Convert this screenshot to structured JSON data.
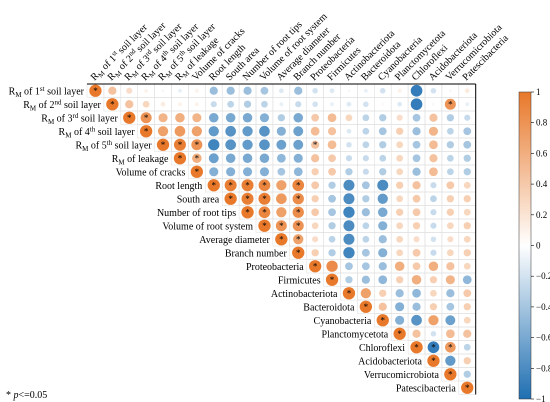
{
  "chart_data": {
    "type": "heatmap",
    "title": "",
    "note": "* p<=0.05",
    "variables": [
      "RM of 1st soil layer",
      "RM of 2nd soil layer",
      "RM of 3rd soil layer",
      "RM of 4th soil layer",
      "RM of 5th soil layer",
      "RM of leakage",
      "Volume of cracks",
      "Root length",
      "South area",
      "Number of root tips",
      "Volume of root system",
      "Average diameter",
      "Branch number",
      "Proteobacteria",
      "Firmicutes",
      "Actinobacteriota",
      "Bacteroidota",
      "Cyanobacteria",
      "Planctomycetota",
      "Chloroflexi",
      "Acidobacteriota",
      "Verrucomicrobiota",
      "Patescibacteria"
    ],
    "row_labels": [
      {
        "base": "R",
        "sub": "M",
        "pre": " of 1",
        "sup": "st",
        "post": " soil layer"
      },
      {
        "base": "R",
        "sub": "M",
        "pre": " of 2",
        "sup": "nd",
        "post": " soil layer"
      },
      {
        "base": "R",
        "sub": "M",
        "pre": " of 3",
        "sup": "rd",
        "post": " soil layer"
      },
      {
        "base": "R",
        "sub": "M",
        "pre": " of 4",
        "sup": "th",
        "post": " soil layer"
      },
      {
        "base": "R",
        "sub": "M",
        "pre": " of 5",
        "sup": "th",
        "post": " soil layer"
      },
      {
        "base": "R",
        "sub": "M",
        "pre": " of leakage",
        "sup": "",
        "post": ""
      },
      {
        "base": "Volume of cracks",
        "sub": "",
        "pre": "",
        "sup": "",
        "post": ""
      },
      {
        "base": "Root length",
        "sub": "",
        "pre": "",
        "sup": "",
        "post": ""
      },
      {
        "base": "South area",
        "sub": "",
        "pre": "",
        "sup": "",
        "post": ""
      },
      {
        "base": "Number of root tips",
        "sub": "",
        "pre": "",
        "sup": "",
        "post": ""
      },
      {
        "base": "Volume of root system",
        "sub": "",
        "pre": "",
        "sup": "",
        "post": ""
      },
      {
        "base": "Average diameter",
        "sub": "",
        "pre": "",
        "sup": "",
        "post": ""
      },
      {
        "base": "Branch number",
        "sub": "",
        "pre": "",
        "sup": "",
        "post": ""
      },
      {
        "base": "Proteobacteria",
        "sub": "",
        "pre": "",
        "sup": "",
        "post": ""
      },
      {
        "base": "Firmicutes",
        "sub": "",
        "pre": "",
        "sup": "",
        "post": ""
      },
      {
        "base": "Actinobacteriota",
        "sub": "",
        "pre": "",
        "sup": "",
        "post": ""
      },
      {
        "base": "Bacteroidota",
        "sub": "",
        "pre": "",
        "sup": "",
        "post": ""
      },
      {
        "base": "Cyanobacteria",
        "sub": "",
        "pre": "",
        "sup": "",
        "post": ""
      },
      {
        "base": "Planctomycetota",
        "sub": "",
        "pre": "",
        "sup": "",
        "post": ""
      },
      {
        "base": "Chloroflexi",
        "sub": "",
        "pre": "",
        "sup": "",
        "post": ""
      },
      {
        "base": "Acidobacteriota",
        "sub": "",
        "pre": "",
        "sup": "",
        "post": ""
      },
      {
        "base": "Verrucomicrobiota",
        "sub": "",
        "pre": "",
        "sup": "",
        "post": ""
      },
      {
        "base": "Patescibacteria",
        "sub": "",
        "pre": "",
        "sup": "",
        "post": ""
      }
    ],
    "colorbar": {
      "ticks": [
        1,
        0.8,
        0.6,
        0.4,
        0.2,
        0,
        -0.2,
        -0.4,
        -0.6,
        -0.8,
        -1
      ],
      "tick_labels": [
        "1",
        "0.8",
        "0.6",
        "0.4",
        "0.2",
        "0",
        "−0.2",
        "−0.4",
        "−0.6",
        "−0.8",
        "−1"
      ],
      "range": [
        -1,
        1
      ],
      "positive_color": "#e8782a",
      "negative_color": "#1f6fb2",
      "neutral_color": "#ffffff"
    },
    "matrix_upper_triangle": [
      [
        1.0,
        0.45,
        0.25,
        0.1,
        -0.05,
        -0.1,
        0.1,
        -0.45,
        -0.45,
        -0.45,
        -0.4,
        -0.15,
        -0.45,
        -0.2,
        -0.15,
        -0.05,
        -0.1,
        -0.2,
        0.1,
        -0.9,
        -0.2,
        -0.05,
        0.15
      ],
      [
        1.0,
        0.45,
        0.3,
        0.15,
        0.1,
        0.1,
        -0.25,
        -0.3,
        -0.35,
        -0.3,
        -0.1,
        -0.25,
        -0.2,
        -0.1,
        -0.15,
        -0.2,
        0.05,
        -0.15,
        -0.9,
        -0.05,
        0.8,
        -0.1
      ],
      [
        1.0,
        0.8,
        0.55,
        0.6,
        0.55,
        -0.6,
        -0.6,
        -0.6,
        -0.55,
        -0.35,
        -0.6,
        0.4,
        0.5,
        0.3,
        -0.3,
        -0.35,
        0.25,
        -0.4,
        0.45,
        -0.35,
        -0.25
      ],
      [
        1.0,
        0.7,
        0.75,
        0.7,
        -0.7,
        -0.75,
        -0.7,
        -0.75,
        -0.55,
        -0.65,
        0.5,
        0.45,
        -0.15,
        -0.3,
        -0.4,
        0.35,
        -0.45,
        0.55,
        -0.3,
        -0.4
      ],
      [
        1.0,
        0.95,
        0.8,
        -0.85,
        -0.75,
        -0.7,
        -0.75,
        -0.65,
        -0.65,
        0.45,
        0.5,
        -0.2,
        -0.3,
        -0.35,
        0.3,
        -0.4,
        0.5,
        -0.35,
        -0.4
      ],
      [
        1.0,
        0.6,
        -0.65,
        -0.6,
        -0.6,
        -0.6,
        -0.5,
        -0.55,
        0.45,
        0.4,
        -0.25,
        -0.25,
        -0.3,
        0.3,
        -0.4,
        0.45,
        -0.3,
        -0.35
      ],
      [
        1.0,
        -0.55,
        -0.55,
        -0.55,
        -0.55,
        -0.4,
        -0.5,
        0.35,
        0.4,
        -0.35,
        -0.25,
        -0.35,
        0.3,
        -0.45,
        0.5,
        -0.3,
        -0.35
      ],
      [
        1.0,
        0.95,
        0.95,
        0.9,
        0.7,
        0.9,
        0.4,
        -0.35,
        -0.8,
        -0.4,
        -0.8,
        0.35,
        0.45,
        -0.25,
        0.4,
        0.3
      ],
      [
        1.0,
        0.95,
        0.95,
        0.75,
        0.85,
        0.35,
        -0.4,
        -0.8,
        -0.35,
        -0.7,
        0.3,
        0.4,
        -0.3,
        0.35,
        0.35
      ],
      [
        1.0,
        0.9,
        0.7,
        0.85,
        0.4,
        -0.4,
        -0.85,
        -0.45,
        -0.6,
        0.35,
        0.4,
        -0.25,
        0.35,
        0.3
      ],
      [
        1.0,
        0.8,
        0.8,
        0.3,
        -0.35,
        -0.8,
        -0.3,
        -0.55,
        0.3,
        0.35,
        -0.25,
        0.3,
        0.35
      ],
      [
        1.0,
        0.7,
        0.25,
        -0.3,
        -0.8,
        -0.3,
        -0.45,
        0.3,
        0.25,
        -0.2,
        0.25,
        0.3
      ],
      [
        1.0,
        0.35,
        -0.35,
        -0.85,
        -0.4,
        -0.55,
        0.3,
        0.4,
        -0.25,
        0.3,
        0.35
      ],
      [
        1.0,
        0.85,
        -0.4,
        -0.4,
        -0.45,
        0.6,
        0.4,
        0.6,
        0.45,
        0.3
      ],
      [
        1.0,
        -0.35,
        -0.45,
        -0.5,
        0.35,
        0.6,
        0.35,
        0.55,
        -0.5
      ],
      [
        1.0,
        0.7,
        0.35,
        -0.45,
        -0.5,
        0.3,
        -0.45,
        0.4
      ],
      [
        1.0,
        0.45,
        -0.55,
        -0.45,
        0.35,
        -0.4,
        0.35
      ],
      [
        1.0,
        -0.55,
        -0.75,
        0.7,
        -0.65,
        0.3
      ],
      [
        1.0,
        0.45,
        -0.2,
        0.5,
        0.45
      ],
      [
        1.0,
        -0.9,
        0.75,
        -0.3
      ],
      [
        1.0,
        -0.7,
        0.35
      ],
      [
        1.0,
        -0.35
      ],
      [
        1.0
      ]
    ],
    "significant": [
      [
        0,
        0
      ],
      [
        1,
        1
      ],
      [
        2,
        2
      ],
      [
        3,
        3
      ],
      [
        4,
        4
      ],
      [
        5,
        5
      ],
      [
        6,
        6
      ],
      [
        7,
        7
      ],
      [
        8,
        8
      ],
      [
        9,
        9
      ],
      [
        10,
        10
      ],
      [
        11,
        11
      ],
      [
        12,
        12
      ],
      [
        13,
        13
      ],
      [
        14,
        14
      ],
      [
        15,
        15
      ],
      [
        16,
        16
      ],
      [
        17,
        17
      ],
      [
        18,
        18
      ],
      [
        19,
        19
      ],
      [
        20,
        20
      ],
      [
        21,
        21
      ],
      [
        22,
        22
      ],
      [
        1,
        21
      ],
      [
        2,
        3
      ],
      [
        4,
        5
      ],
      [
        4,
        6
      ],
      [
        5,
        6
      ],
      [
        7,
        8
      ],
      [
        7,
        9
      ],
      [
        7,
        10
      ],
      [
        7,
        12
      ],
      [
        8,
        9
      ],
      [
        8,
        10
      ],
      [
        8,
        12
      ],
      [
        9,
        10
      ],
      [
        9,
        12
      ],
      [
        10,
        11
      ],
      [
        10,
        12
      ],
      [
        11,
        12
      ],
      [
        4,
        13
      ],
      [
        19,
        20
      ],
      [
        19,
        21
      ]
    ]
  }
}
